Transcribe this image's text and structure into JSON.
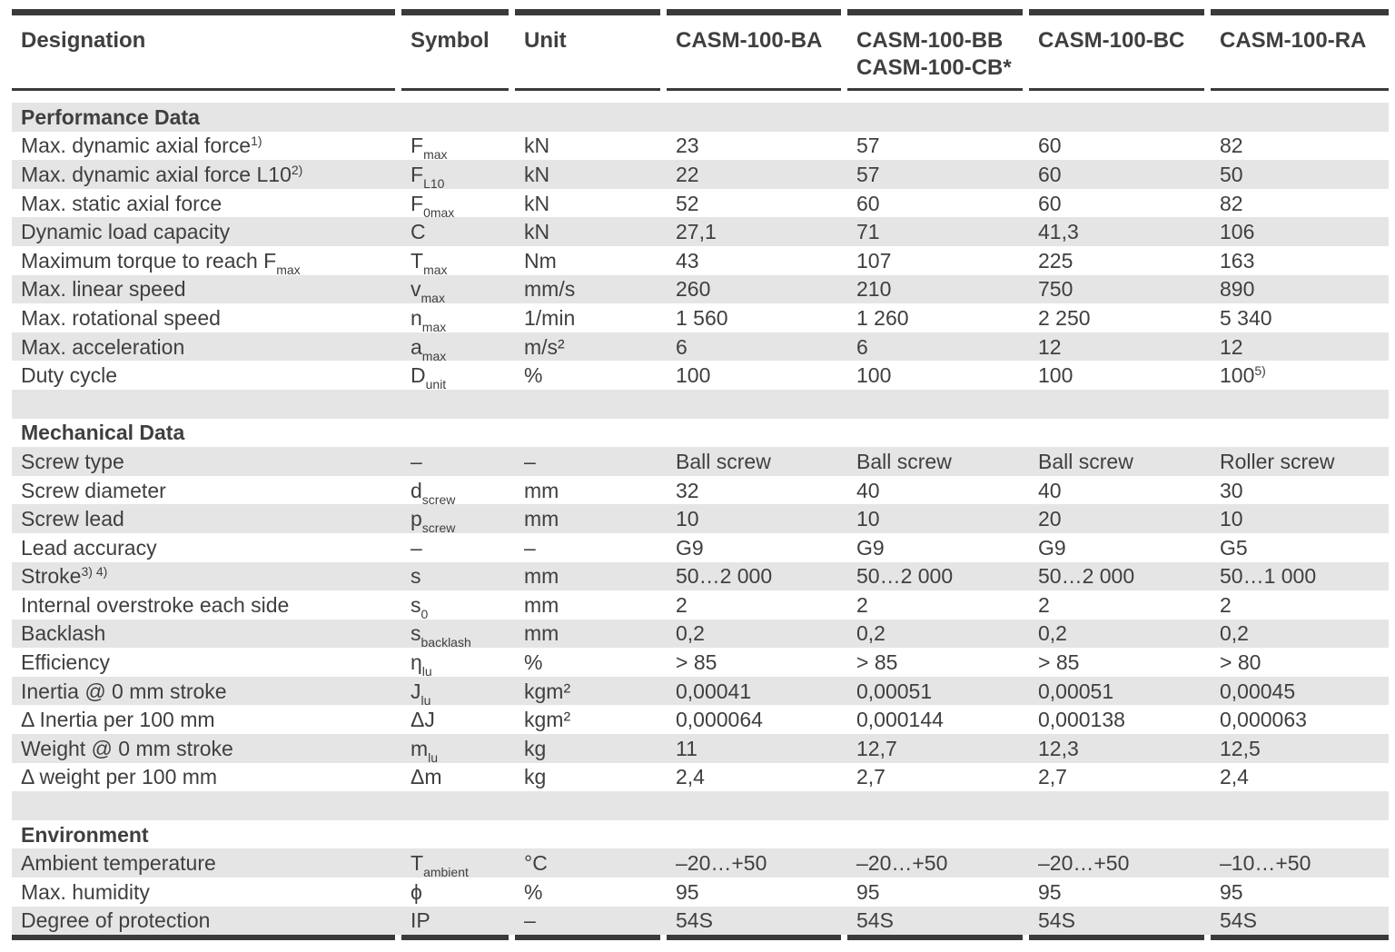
{
  "colors": {
    "row_stripe": "#e5e5e5",
    "rule": "#3a3a3a",
    "text": "#3f3f3f"
  },
  "table": {
    "header": {
      "designation": "Designation",
      "symbol": "Symbol",
      "unit": "Unit",
      "products": [
        [
          "CASM-100-BA"
        ],
        [
          "CASM-100-BB",
          "CASM-100-CB*"
        ],
        [
          "CASM-100-BC"
        ],
        [
          "CASM-100-RA"
        ]
      ]
    },
    "sections": [
      {
        "title": "Performance Data",
        "rows": [
          {
            "label": "Max. dynamic axial force",
            "label_sup": "1)",
            "sym": "F",
            "sym_sub": "max",
            "unit": "kN",
            "values": [
              "23",
              "57",
              "60",
              "82"
            ]
          },
          {
            "label": "Max. dynamic axial force L10",
            "label_sup": "2)",
            "sym": "F",
            "sym_sub": "L10",
            "unit": "kN",
            "values": [
              "22",
              "57",
              "60",
              "50"
            ]
          },
          {
            "label": "Max. static axial force",
            "sym": "F",
            "sym_sub": "0max",
            "unit": "kN",
            "values": [
              "52",
              "60",
              "60",
              "82"
            ]
          },
          {
            "label": "Dynamic load capacity",
            "sym": "C",
            "unit": "kN",
            "values": [
              "27,1",
              "71",
              "41,3",
              "106"
            ]
          },
          {
            "label": "Maximum torque to reach F",
            "label_sub": "max",
            "sym": "T",
            "sym_sub": "max",
            "unit": "Nm",
            "values": [
              "43",
              "107",
              "225",
              "163"
            ]
          },
          {
            "label": "Max. linear speed",
            "sym": "v",
            "sym_sub": "max",
            "unit": "mm/s",
            "values": [
              "260",
              "210",
              "750",
              "890"
            ]
          },
          {
            "label": "Max. rotational speed",
            "sym": "n",
            "sym_sub": "max",
            "unit": "1/min",
            "values": [
              "1 560",
              "1 260",
              "2 250",
              "5 340"
            ]
          },
          {
            "label": "Max. acceleration",
            "sym": "a",
            "sym_sub": "max",
            "unit": "m/s²",
            "values": [
              "6",
              "6",
              "12",
              "12"
            ]
          },
          {
            "label": "Duty cycle",
            "sym": "D",
            "sym_sub": "unit",
            "unit": "%",
            "values": [
              "100",
              "100",
              "100",
              {
                "text": "100",
                "sup": "5)"
              }
            ]
          }
        ]
      },
      {
        "title": "Mechanical Data",
        "rows": [
          {
            "label": "Screw type",
            "sym": "–",
            "unit": "–",
            "values": [
              "Ball screw",
              "Ball screw",
              "Ball screw",
              "Roller screw"
            ]
          },
          {
            "label": "Screw diameter",
            "sym": "d",
            "sym_sub": "screw",
            "unit": "mm",
            "values": [
              "32",
              "40",
              "40",
              "30"
            ]
          },
          {
            "label": "Screw lead",
            "sym": "p",
            "sym_sub": "screw",
            "unit": "mm",
            "values": [
              "10",
              "10",
              "20",
              "10"
            ]
          },
          {
            "label": "Lead accuracy",
            "sym": "–",
            "unit": "–",
            "values": [
              "G9",
              "G9",
              "G9",
              "G5"
            ]
          },
          {
            "label": "Stroke",
            "label_sup": "3) 4)",
            "sym": "s",
            "unit": "mm",
            "values": [
              "50…2 000",
              "50…2 000",
              "50…2 000",
              "50…1 000"
            ]
          },
          {
            "label": "Internal overstroke each side",
            "sym": "s",
            "sym_sub": "0",
            "unit": "mm",
            "values": [
              "2",
              "2",
              "2",
              "2"
            ]
          },
          {
            "label": "Backlash",
            "sym": "s",
            "sym_sub": "backlash",
            "unit": "mm",
            "values": [
              "0,2",
              "0,2",
              "0,2",
              "0,2"
            ]
          },
          {
            "label": "Efficiency",
            "sym": "η",
            "sym_sub": "lu",
            "unit": "%",
            "values": [
              "> 85",
              "> 85",
              "> 85",
              "> 80"
            ]
          },
          {
            "label": "Inertia @ 0 mm stroke",
            "sym": "J",
            "sym_sub": "lu",
            "unit": "kgm²",
            "values": [
              "0,00041",
              "0,00051",
              "0,00051",
              "0,00045"
            ]
          },
          {
            "label": "Δ Inertia per 100 mm",
            "sym": "ΔJ",
            "unit": "kgm²",
            "values": [
              "0,000064",
              "0,000144",
              "0,000138",
              "0,000063"
            ]
          },
          {
            "label": "Weight @ 0 mm stroke",
            "sym": "m",
            "sym_sub": "lu",
            "unit": "kg",
            "values": [
              "11",
              "12,7",
              "12,3",
              "12,5"
            ]
          },
          {
            "label": "Δ weight per 100 mm",
            "sym": "Δm",
            "unit": "kg",
            "values": [
              "2,4",
              "2,7",
              "2,7",
              "2,4"
            ]
          }
        ]
      },
      {
        "title": "Environment",
        "rows": [
          {
            "label": "Ambient temperature",
            "sym": "T",
            "sym_sub": "ambient",
            "unit": "°C",
            "values": [
              "–20…+50",
              "–20…+50",
              "–20…+50",
              "–10…+50"
            ]
          },
          {
            "label": "Max. humidity",
            "sym": "ϕ",
            "unit": "%",
            "values": [
              "95",
              "95",
              "95",
              "95"
            ]
          },
          {
            "label": "Degree of protection",
            "sym": "IP",
            "unit": "–",
            "values": [
              "54S",
              "54S",
              "54S",
              "54S"
            ]
          }
        ]
      }
    ]
  }
}
